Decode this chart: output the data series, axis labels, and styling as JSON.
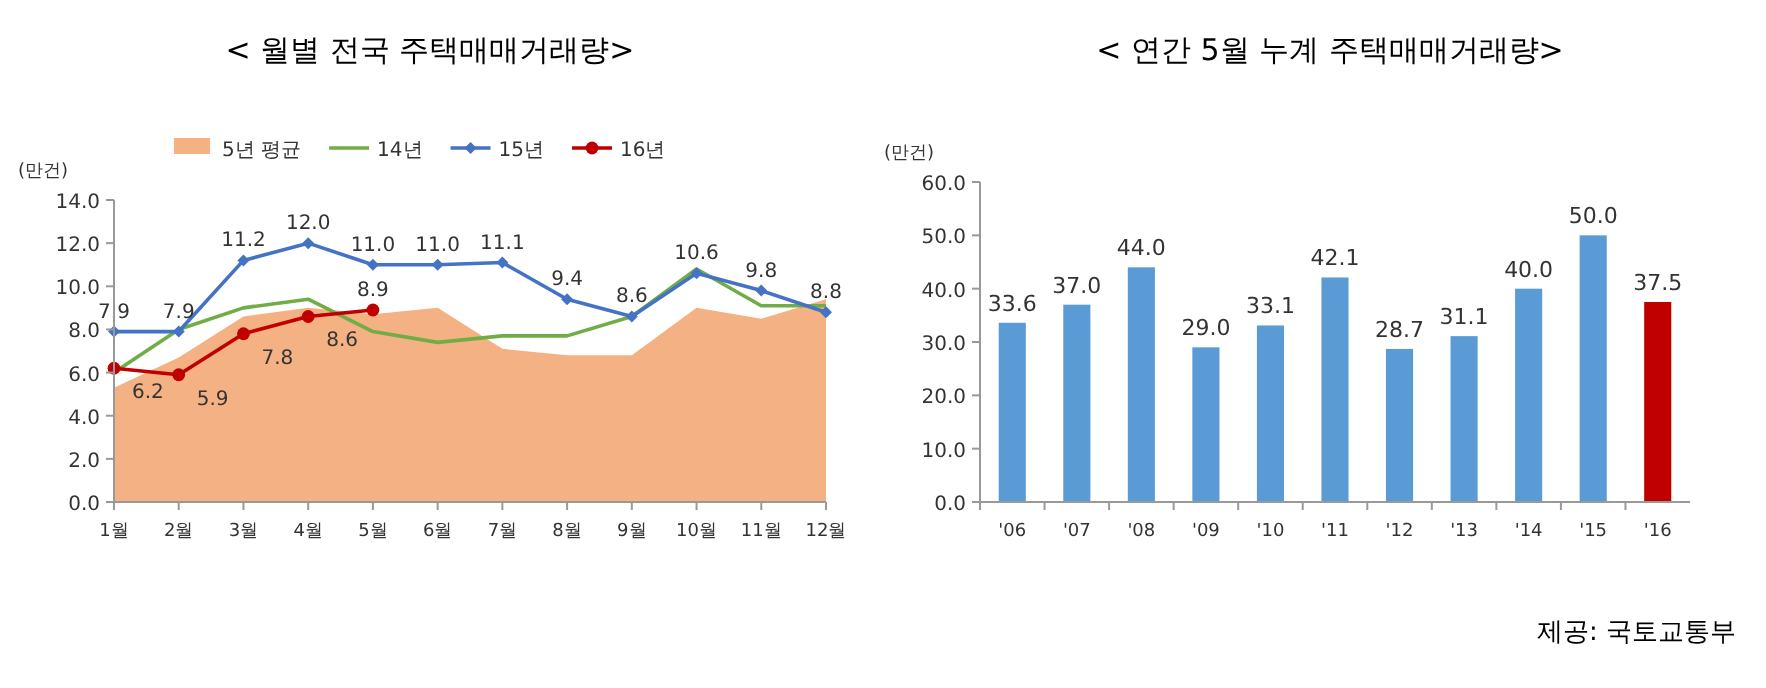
{
  "chart_data": [
    {
      "type": "line",
      "title": "< 월별 전국 주택매매거래량>",
      "ylabel": "(만건)",
      "categories": [
        "1월",
        "2월",
        "3월",
        "4월",
        "5월",
        "6월",
        "7월",
        "8월",
        "9월",
        "10월",
        "11월",
        "12월"
      ],
      "series": [
        {
          "name": "5년 평균",
          "type": "area",
          "color": "#f4b183",
          "values": [
            5.3,
            6.7,
            8.6,
            9.0,
            8.7,
            9.0,
            7.1,
            6.8,
            6.8,
            9.0,
            8.5,
            9.4
          ]
        },
        {
          "name": "14년",
          "type": "line",
          "color": "#70ad47",
          "values": [
            6.0,
            8.0,
            9.0,
            9.4,
            7.9,
            7.4,
            7.7,
            7.7,
            8.6,
            10.8,
            9.1,
            9.1
          ]
        },
        {
          "name": "15년",
          "type": "line",
          "color": "#4472c4",
          "marker": "diamond",
          "values": [
            7.9,
            7.9,
            11.2,
            12.0,
            11.0,
            11.0,
            11.1,
            9.4,
            8.6,
            10.6,
            9.8,
            8.8
          ],
          "value_labels": [
            "7.9",
            "7.9",
            "11.2",
            "12.0",
            "11.0",
            "11.0",
            "11.1",
            "9.4",
            "8.6",
            "10.6",
            "9.8",
            "8.8"
          ]
        },
        {
          "name": "16년",
          "type": "line",
          "color": "#c00000",
          "marker": "circle",
          "values": [
            6.2,
            5.9,
            7.8,
            8.6,
            8.9,
            null,
            null,
            null,
            null,
            null,
            null,
            null
          ],
          "value_labels": [
            "6.2",
            "5.9",
            "7.8",
            "8.6",
            "8.9",
            null,
            null,
            null,
            null,
            null,
            null,
            null
          ]
        }
      ],
      "ylim": [
        0,
        14
      ],
      "yticks": [
        {
          "value": 0,
          "label": "0.0"
        },
        {
          "value": 2,
          "label": "2.0"
        },
        {
          "value": 4,
          "label": "4.0"
        },
        {
          "value": 6,
          "label": "6.0"
        },
        {
          "value": 8,
          "label": "8.0"
        },
        {
          "value": 10,
          "label": "10.0"
        },
        {
          "value": 12,
          "label": "12.0"
        },
        {
          "value": 14,
          "label": "14.0"
        }
      ],
      "legend": "top",
      "grid": false
    },
    {
      "type": "bar",
      "title": "< 연간 5월 누계 주택매매거래량>",
      "ylabel": "(만건)",
      "categories": [
        "'06",
        "'07",
        "'08",
        "'09",
        "'10",
        "'11",
        "'12",
        "'13",
        "'14",
        "'15",
        "'16"
      ],
      "values": [
        33.6,
        37.0,
        44.0,
        29.0,
        33.1,
        42.1,
        28.7,
        31.1,
        40.0,
        50.0,
        37.5
      ],
      "value_labels": [
        "33.6",
        "37.0",
        "44.0",
        "29.0",
        "33.1",
        "42.1",
        "28.7",
        "31.1",
        "40.0",
        "50.0",
        "37.5"
      ],
      "colors": [
        "#5b9bd5",
        "#5b9bd5",
        "#5b9bd5",
        "#5b9bd5",
        "#5b9bd5",
        "#5b9bd5",
        "#5b9bd5",
        "#5b9bd5",
        "#5b9bd5",
        "#5b9bd5",
        "#c00000"
      ],
      "ylim": [
        0,
        60
      ],
      "yticks": [
        {
          "value": 0,
          "label": "0.0"
        },
        {
          "value": 10,
          "label": "10.0"
        },
        {
          "value": 20,
          "label": "20.0"
        },
        {
          "value": 30,
          "label": "30.0"
        },
        {
          "value": 40,
          "label": "40.0"
        },
        {
          "value": 50,
          "label": "50.0"
        },
        {
          "value": 60,
          "label": "60.0"
        }
      ],
      "grid": false,
      "annotations": [
        "제공: 국토교통부"
      ]
    }
  ]
}
